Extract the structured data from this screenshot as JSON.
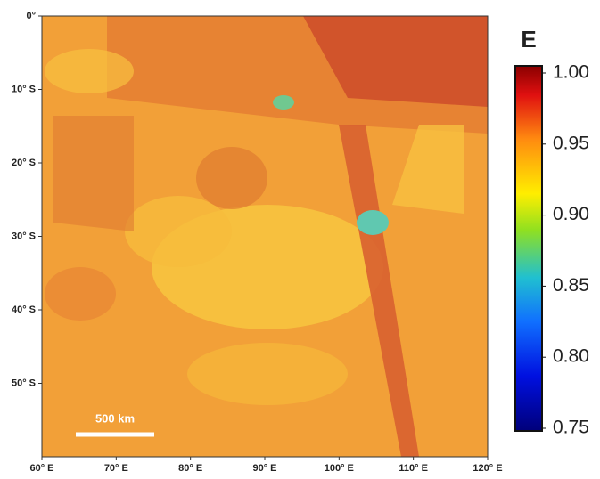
{
  "chart_data": {
    "type": "map",
    "title": "E",
    "xlim": [
      60,
      120
    ],
    "xticks": [
      {
        "value": 60,
        "label": "60° E"
      },
      {
        "value": 70,
        "label": "70° E"
      },
      {
        "value": 80,
        "label": "80° E"
      },
      {
        "value": 90,
        "label": "90° E"
      },
      {
        "value": 100,
        "label": "100° E"
      },
      {
        "value": 110,
        "label": "110° E"
      },
      {
        "value": 120,
        "label": "120° E"
      }
    ],
    "ylim": [
      -60,
      0
    ],
    "yticks": [
      {
        "value": 0,
        "label": "0°"
      },
      {
        "value": -10,
        "label": "10° S"
      },
      {
        "value": -20,
        "label": "20° S"
      },
      {
        "value": -30,
        "label": "30° S"
      },
      {
        "value": -40,
        "label": "40° S"
      },
      {
        "value": -50,
        "label": "50° S"
      }
    ],
    "colorbar": {
      "lim": [
        0.75,
        1.0
      ],
      "ticks": [
        {
          "value": 1.0,
          "label": "1.00"
        },
        0.95,
        {
          "value": 0.9,
          "label": "0.90"
        },
        0.85,
        {
          "value": 0.8,
          "label": "0.80"
        },
        0.75
      ]
    },
    "annotations": [
      "500 km"
    ]
  }
}
